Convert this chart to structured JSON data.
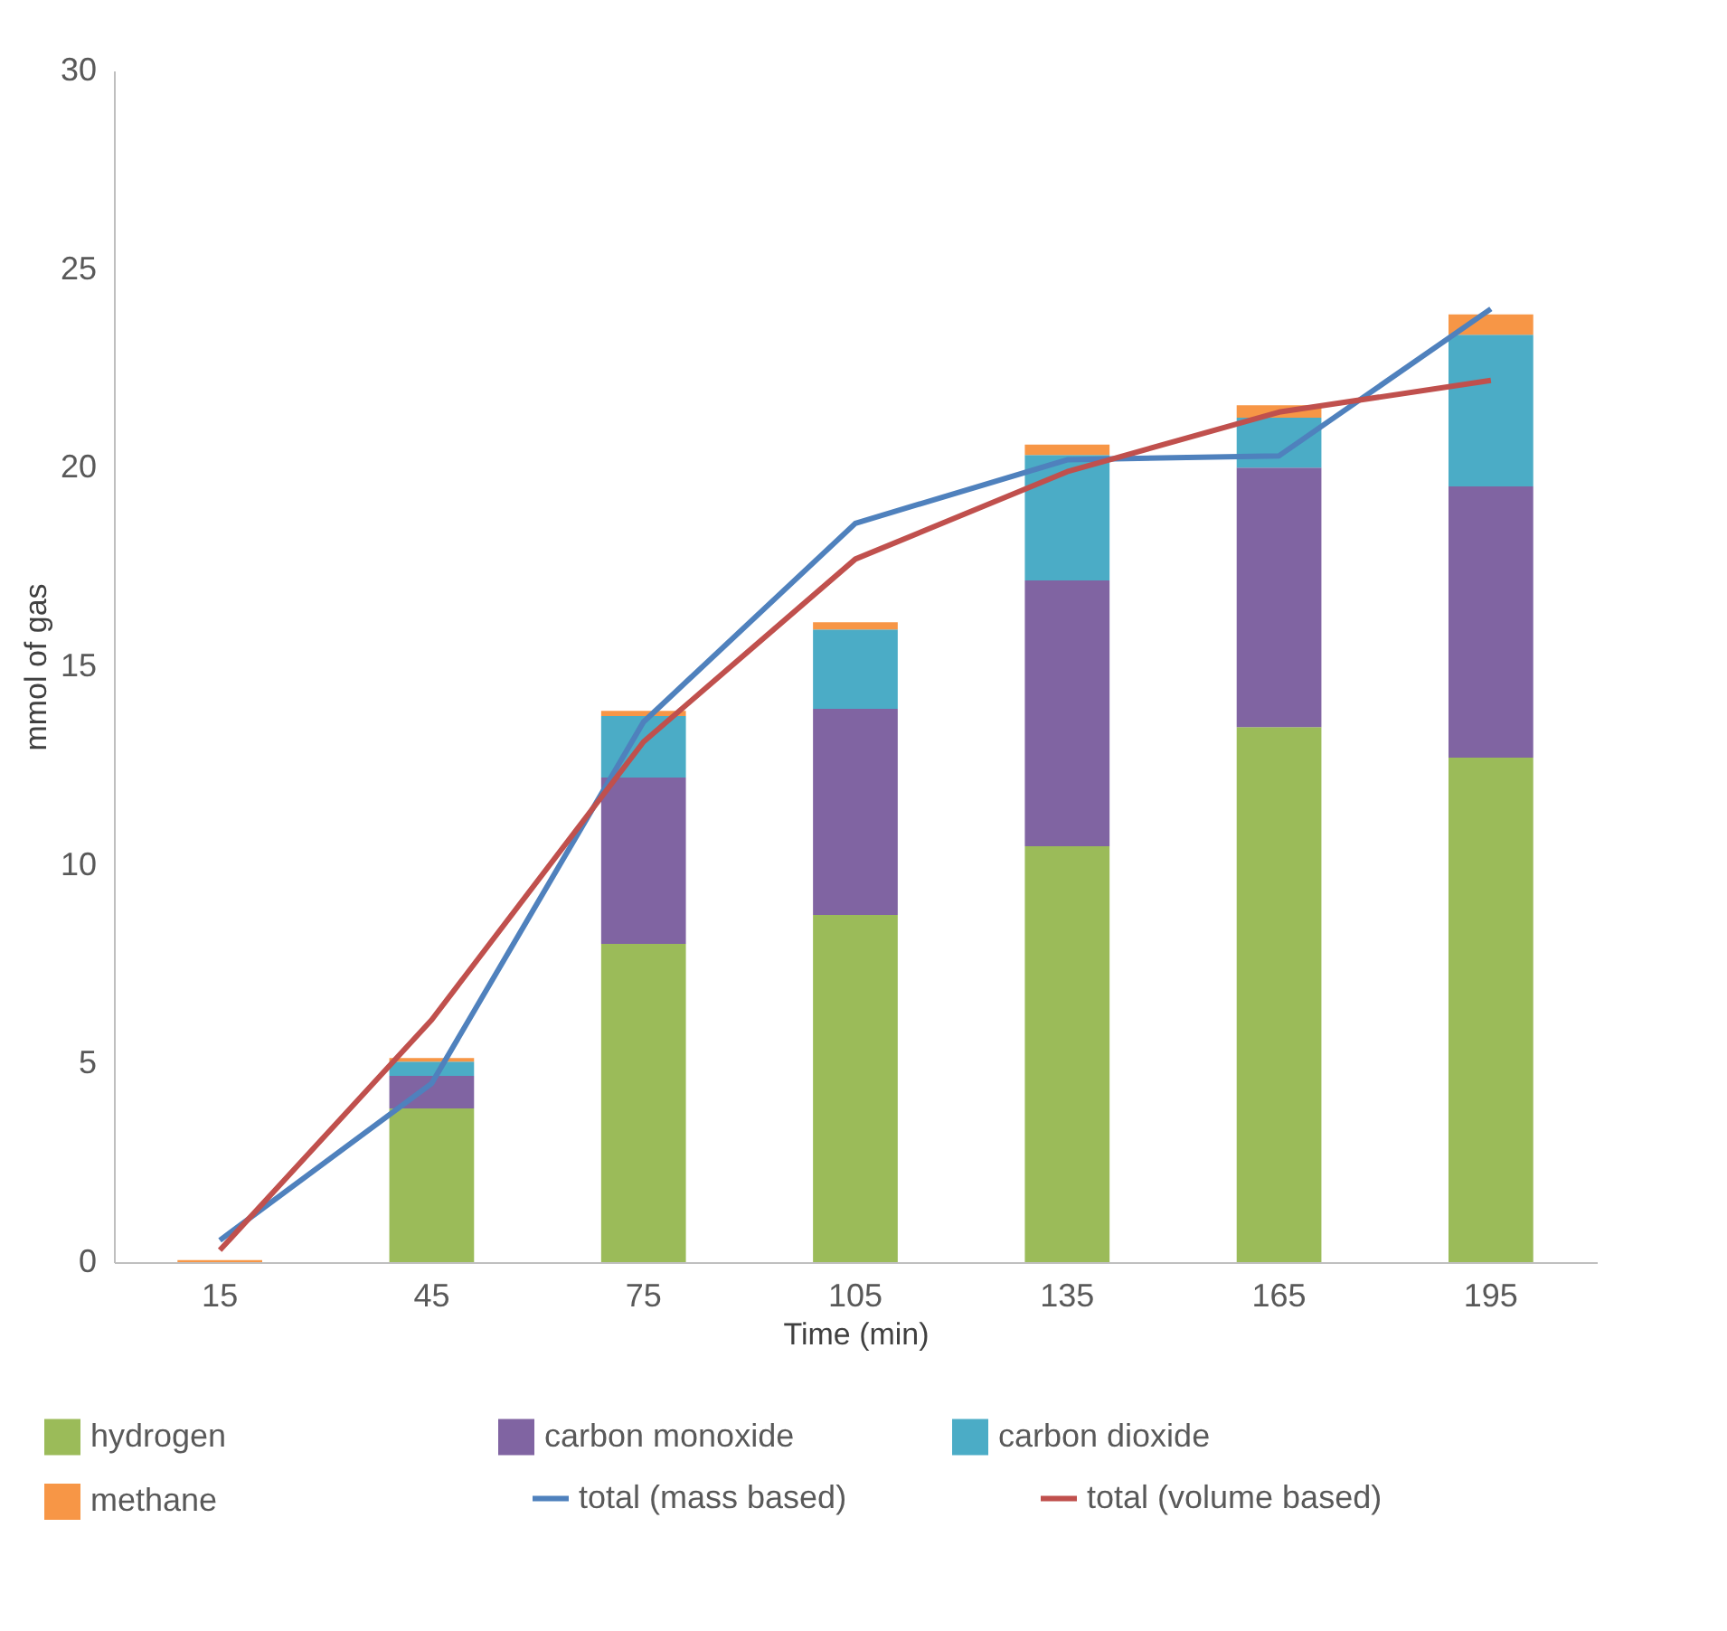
{
  "chart_data": {
    "type": "bar",
    "stacked": true,
    "xlabel": "Time (min)",
    "ylabel": "mmol of gas",
    "categories": [
      "15",
      "45",
      "75",
      "105",
      "135",
      "165",
      "195"
    ],
    "ylim": [
      0,
      30
    ],
    "yticks": [
      0,
      5,
      10,
      15,
      20,
      25,
      30
    ],
    "grid": false,
    "legend": "bottom",
    "series": [
      {
        "name": "hydrogen",
        "color": "#9bbb59",
        "values": [
          0,
          3.87,
          8.01,
          8.74,
          10.47,
          13.47,
          12.7
        ]
      },
      {
        "name": "carbon monoxide",
        "color": "#8064a2",
        "values": [
          0,
          0.82,
          4.19,
          5.19,
          6.69,
          6.53,
          6.83
        ]
      },
      {
        "name": "carbon dioxide",
        "color": "#4bacc6",
        "values": [
          0,
          0.36,
          1.55,
          2.0,
          3.16,
          1.26,
          3.82
        ]
      },
      {
        "name": "methane",
        "color": "#f79646",
        "values": [
          0.05,
          0.09,
          0.13,
          0.18,
          0.26,
          0.31,
          0.51
        ]
      },
      {
        "name": "total (mass based)",
        "color": "#4f81bd",
        "type": "line",
        "values": [
          0.55,
          4.5,
          13.6,
          18.6,
          20.2,
          20.3,
          24.0
        ]
      },
      {
        "name": "total (volume based)",
        "color": "#c0504d",
        "type": "line",
        "values": [
          0.3,
          6.1,
          13.1,
          17.7,
          19.9,
          21.4,
          22.2
        ]
      }
    ]
  }
}
